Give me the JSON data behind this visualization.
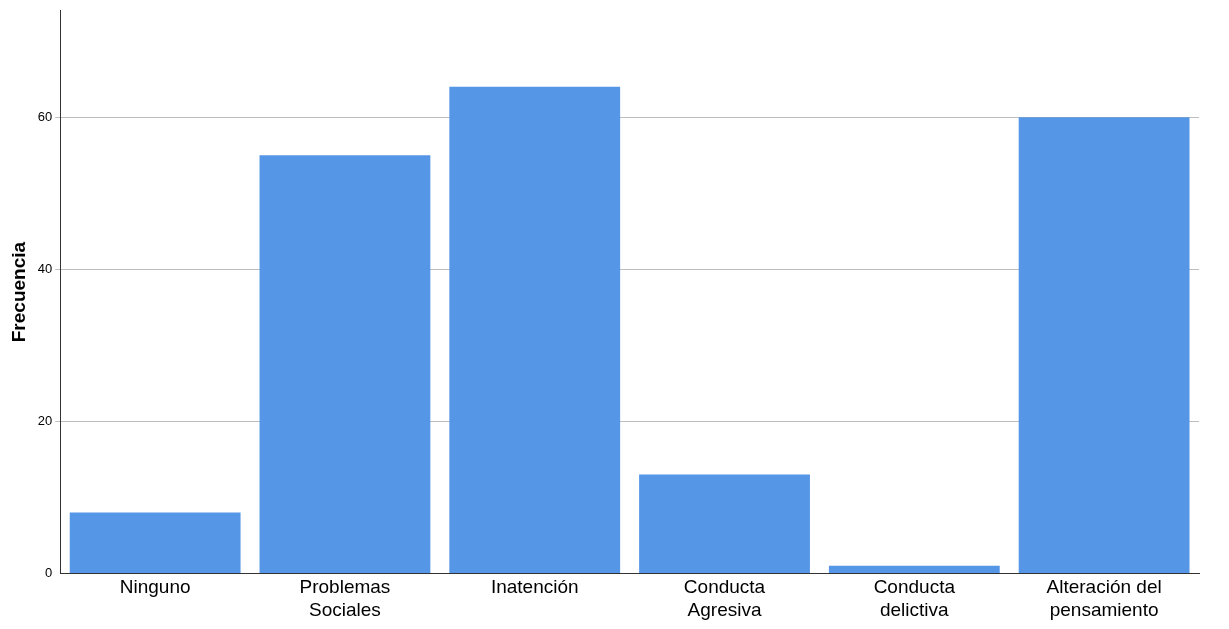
{
  "chart_data": {
    "type": "bar",
    "ylabel": "Frecuencia",
    "categories": [
      "Ninguno",
      "Problemas Sociales",
      "Inatención",
      "Conducta Agresiva",
      "Conducta delictiva",
      "Alteración del pensamiento"
    ],
    "values": [
      8,
      55,
      64,
      13,
      1,
      60
    ],
    "color": "#5596e6",
    "ylim": [
      0,
      74
    ],
    "yticks": [
      0,
      20,
      40,
      60
    ],
    "grid": "y",
    "legend": false
  }
}
